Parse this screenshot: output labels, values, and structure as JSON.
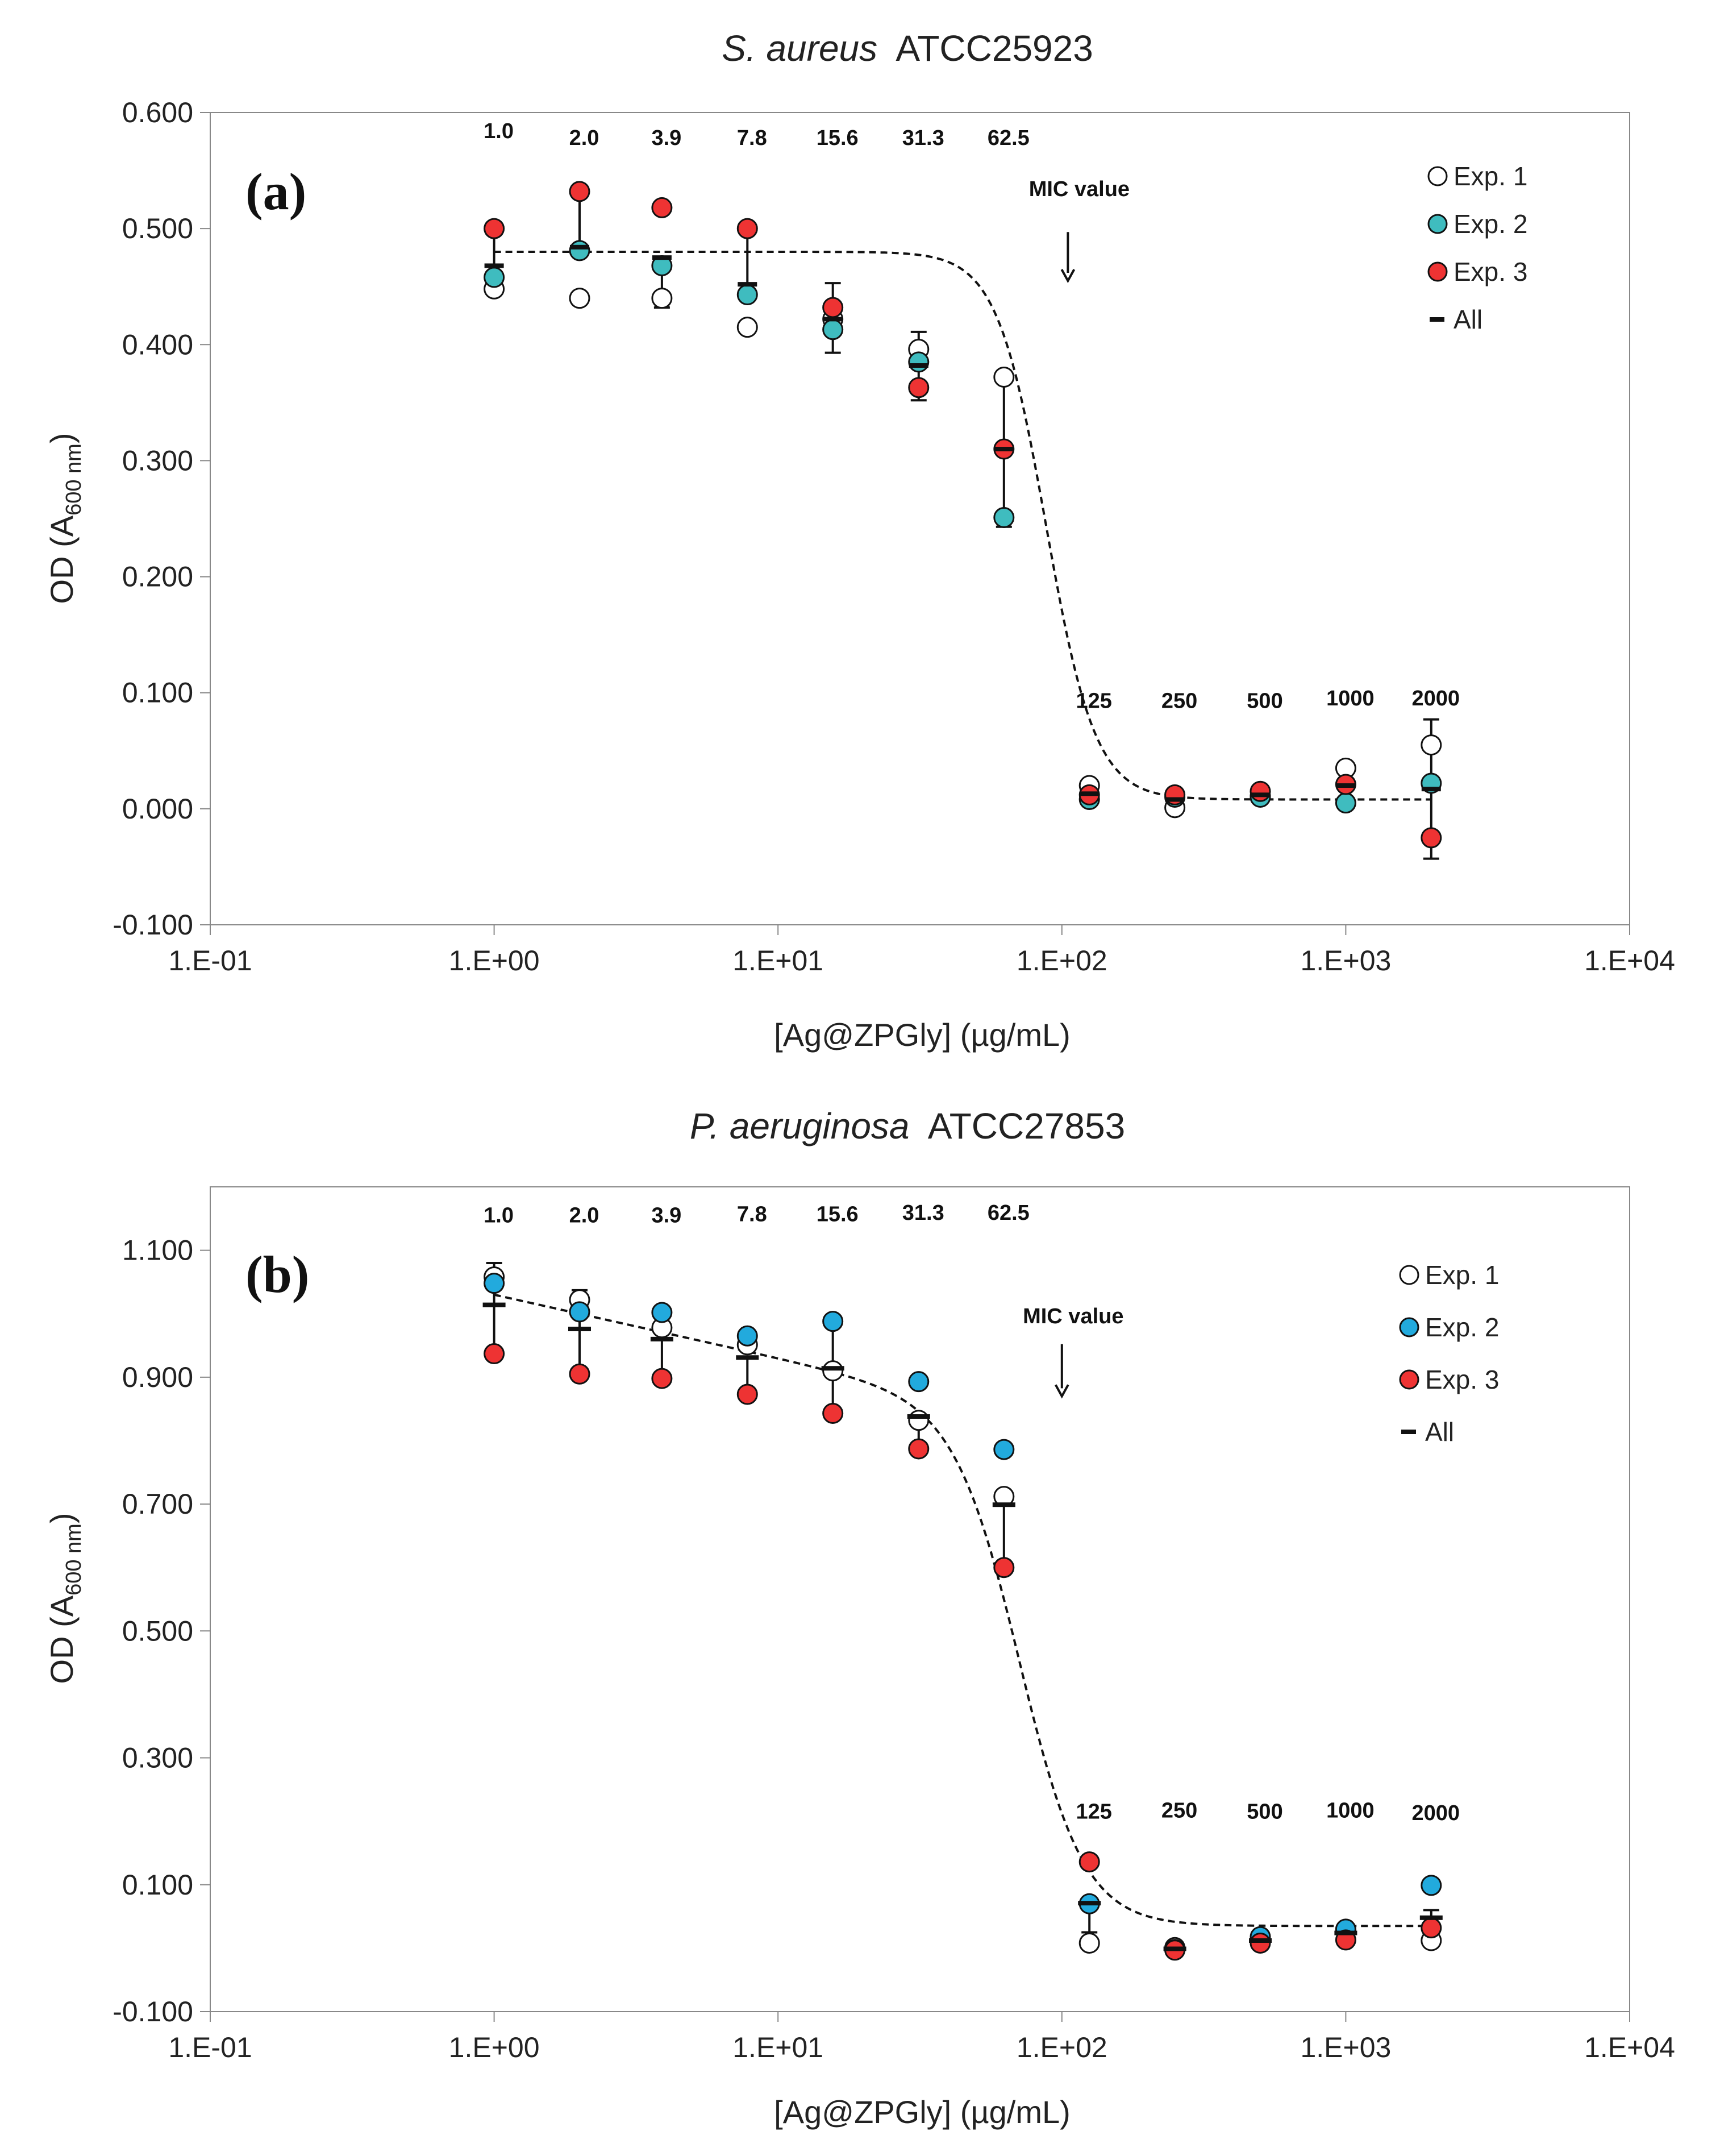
{
  "figure": {
    "background": "#ffffff"
  },
  "chart_data": [
    {
      "id": "a",
      "type": "scatter",
      "title_italic": "S. aureus",
      "title_rest": "ATCC25923",
      "panel_label": "(a)",
      "xlabel": "[Ag@ZPGly] (µg/mL)",
      "ylabel_main": "OD (A",
      "ylabel_sub": "600 nm",
      "ylabel_close": ")",
      "xscale": "log",
      "xlim": [
        0.1,
        10000
      ],
      "ylim": [
        -0.1,
        0.6
      ],
      "xticks": [
        0.1,
        1,
        10,
        100,
        1000,
        10000
      ],
      "xtick_labels": [
        "1.E-01",
        "1.E+00",
        "1.E+01",
        "1.E+02",
        "1.E+03",
        "1.E+04"
      ],
      "yticks": [
        -0.1,
        0.0,
        0.1,
        0.2,
        0.3,
        0.4,
        0.5,
        0.6
      ],
      "ytick_labels": [
        "-0.100",
        "0.000",
        "0.100",
        "0.200",
        "0.300",
        "0.400",
        "0.500",
        "0.600"
      ],
      "x": [
        1.0,
        2.0,
        3.9,
        7.8,
        15.6,
        31.3,
        62.5,
        125,
        250,
        500,
        1000,
        2000
      ],
      "conc_labels": [
        "1.0",
        "2.0",
        "3.9",
        "7.8",
        "15.6",
        "31.3",
        "62.5",
        "125",
        "250",
        "500",
        "1000",
        "2000"
      ],
      "conc_label_y": [
        0.578,
        0.572,
        0.572,
        0.572,
        0.572,
        0.572,
        0.572,
        0.087,
        0.087,
        0.087,
        0.089,
        0.089
      ],
      "series": [
        {
          "name": "Exp. 1",
          "color": "#ffffff",
          "values": [
            0.448,
            0.44,
            0.44,
            0.415,
            0.422,
            0.396,
            0.372,
            0.02,
            0.001,
            0.011,
            0.035,
            0.055
          ]
        },
        {
          "name": "Exp. 2",
          "color": "#3fbcbf",
          "values": [
            0.458,
            0.481,
            0.468,
            0.443,
            0.413,
            0.385,
            0.251,
            0.008,
            0.01,
            0.01,
            0.005,
            0.022
          ]
        },
        {
          "name": "Exp. 3",
          "color": "#ee3333",
          "values": [
            0.5,
            0.532,
            0.518,
            0.5,
            0.432,
            0.363,
            0.31,
            0.012,
            0.012,
            0.015,
            0.021,
            -0.025
          ]
        }
      ],
      "mean": {
        "name": "All",
        "values": [
          0.468,
          0.484,
          0.475,
          0.452,
          0.422,
          0.382,
          0.31,
          0.013,
          0.008,
          0.012,
          0.02,
          0.017
        ]
      },
      "error_bars": [
        {
          "low": 0.468,
          "high": 0.5
        },
        {
          "low": 0.484,
          "high": 0.532
        },
        {
          "low": 0.432,
          "high": 0.475
        },
        {
          "low": 0.452,
          "high": 0.5
        },
        {
          "low": 0.393,
          "high": 0.453
        },
        {
          "low": 0.352,
          "high": 0.411
        },
        {
          "low": 0.243,
          "high": 0.372
        },
        {
          "low": 0.006,
          "high": 0.02
        },
        {
          "low": 0.008,
          "high": 0.012
        },
        {
          "low": 0.01,
          "high": 0.015
        },
        {
          "low": 0.01,
          "high": 0.035
        },
        {
          "low": -0.043,
          "high": 0.077
        }
      ],
      "fit_curve": {
        "top": 0.48,
        "bottom": 0.008,
        "ec50": 88,
        "hill": 5
      },
      "mic": {
        "label": "MIC value",
        "x": 105,
        "label_y": 0.528,
        "arrow_top": 0.497,
        "arrow_bottom": 0.455
      },
      "legend": {
        "position": "top-right",
        "entries": [
          "Exp. 1",
          "Exp. 2",
          "Exp. 3",
          "All"
        ]
      }
    },
    {
      "id": "b",
      "type": "scatter",
      "title_italic": "P. aeruginosa",
      "title_rest": "ATCC27853",
      "panel_label": "(b)",
      "xlabel": "[Ag@ZPGly] (µg/mL)",
      "ylabel_main": "OD (A",
      "ylabel_sub": "600 nm",
      "ylabel_close": ")",
      "xscale": "log",
      "xlim": [
        0.1,
        10000
      ],
      "ylim": [
        -0.1,
        1.2
      ],
      "xticks": [
        0.1,
        1,
        10,
        100,
        1000,
        10000
      ],
      "xtick_labels": [
        "1.E-01",
        "1.E+00",
        "1.E+01",
        "1.E+02",
        "1.E+03",
        "1.E+04"
      ],
      "yticks": [
        -0.1,
        0.1,
        0.3,
        0.5,
        0.7,
        0.9,
        1.1
      ],
      "ytick_labels": [
        "-0.100",
        "0.100",
        "0.300",
        "0.500",
        "0.700",
        "0.900",
        "1.100"
      ],
      "x": [
        1.0,
        2.0,
        3.9,
        7.8,
        15.6,
        31.3,
        62.5,
        125,
        250,
        500,
        1000,
        2000
      ],
      "conc_labels": [
        "1.0",
        "2.0",
        "3.9",
        "7.8",
        "15.6",
        "31.3",
        "62.5",
        "125",
        "250",
        "500",
        "1000",
        "2000"
      ],
      "conc_label_y": [
        1.144,
        1.144,
        1.144,
        1.146,
        1.146,
        1.148,
        1.148,
        0.204,
        0.206,
        0.204,
        0.206,
        0.202
      ],
      "series": [
        {
          "name": "Exp. 1",
          "color": "#ffffff",
          "values": [
            1.058,
            1.022,
            0.978,
            0.951,
            0.91,
            0.832,
            0.712,
            0.008,
            0.001,
            0.011,
            0.028,
            0.012
          ]
        },
        {
          "name": "Exp. 2",
          "color": "#22aadd",
          "values": [
            1.048,
            1.003,
            1.002,
            0.965,
            0.988,
            0.893,
            0.786,
            0.07,
            -0.002,
            0.018,
            0.03,
            0.099
          ]
        },
        {
          "name": "Exp. 3",
          "color": "#ee3333",
          "values": [
            0.937,
            0.905,
            0.898,
            0.873,
            0.843,
            0.787,
            0.6,
            0.136,
            -0.003,
            0.008,
            0.013,
            0.032
          ]
        }
      ],
      "mean": {
        "name": "All",
        "values": [
          1.014,
          0.976,
          0.96,
          0.931,
          0.914,
          0.838,
          0.699,
          0.071,
          -0.001,
          0.012,
          0.024,
          0.048
        ]
      },
      "error_bars": [
        {
          "low": 0.937,
          "high": 1.08
        },
        {
          "low": 0.905,
          "high": 1.037
        },
        {
          "low": 0.898,
          "high": 0.96
        },
        {
          "low": 0.873,
          "high": 0.931
        },
        {
          "low": 0.843,
          "high": 0.988
        },
        {
          "low": 0.787,
          "high": 0.838
        },
        {
          "low": 0.6,
          "high": 0.699
        },
        {
          "low": 0.025,
          "high": 0.071
        },
        {
          "low": -0.001,
          "high": 0.001
        },
        {
          "low": 0.008,
          "high": 0.018
        },
        {
          "low": 0.013,
          "high": 0.03
        },
        {
          "low": 0.012,
          "high": 0.06
        }
      ],
      "fit_curve": {
        "top": 1.03,
        "bottom": 0.035,
        "ec50": 72,
        "hill": 3.8,
        "slope": 0.1
      },
      "mic": {
        "label": "MIC value",
        "x": 100,
        "label_y": 0.985,
        "arrow_top": 0.952,
        "arrow_bottom": 0.87
      },
      "legend": {
        "position": "top-right",
        "entries": [
          "Exp. 1",
          "Exp. 2",
          "Exp. 3",
          "All"
        ]
      }
    }
  ]
}
